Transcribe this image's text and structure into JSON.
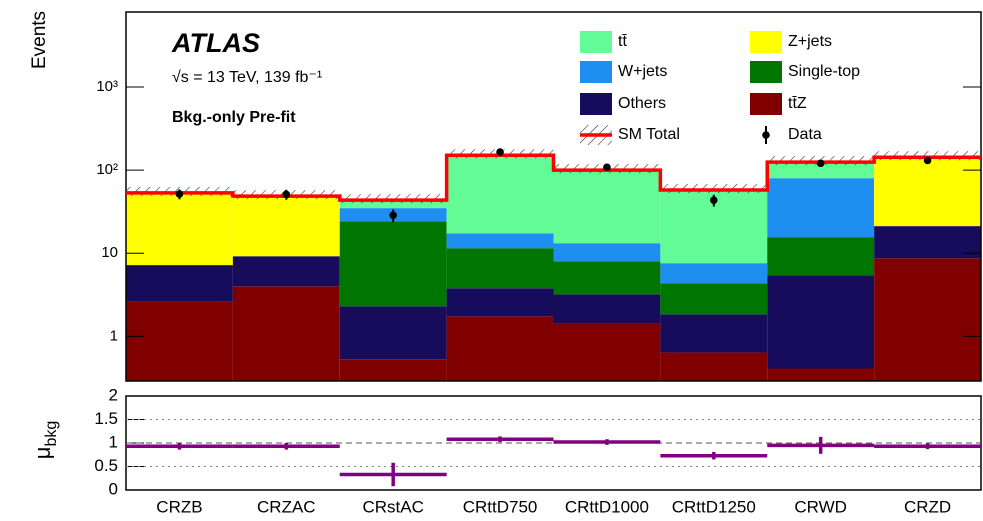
{
  "chart_data": [
    {
      "type": "stacked-bar",
      "title": "ATLAS",
      "subtitle": "√s = 13 TeV, 139 fb⁻¹",
      "annotation": "Bkg.-only Pre-fit",
      "ylabel": "Events",
      "log_scale": true,
      "legend": "upper right",
      "total_label": "SM Total",
      "total_color": "#ff0000",
      "ylim": [
        0.29,
        8000
      ],
      "yticks": [
        1,
        10,
        {
          "value": 100,
          "label": "10²"
        },
        {
          "value": 1000,
          "label": "10³"
        }
      ],
      "series": [
        {
          "name": "tt̄Z",
          "color": "#800000",
          "values": [
            2.6,
            4.0,
            0.53,
            1.74,
            1.43,
            0.64,
            0.41,
            8.7
          ]
        },
        {
          "name": "Others",
          "color": "#170b5c",
          "values": [
            4.6,
            5.2,
            1.77,
            2.05,
            1.77,
            1.2,
            5.0,
            12.5
          ]
        },
        {
          "name": "Single-top",
          "color": "#007500",
          "values": [
            0,
            0,
            21.9,
            7.7,
            4.8,
            2.5,
            10.2,
            0
          ]
        },
        {
          "name": "W+jets",
          "color": "#1e8ff0",
          "values": [
            0,
            0,
            10.7,
            5.9,
            5.2,
            3.25,
            64.4,
            0
          ]
        },
        {
          "name": "Z+jets",
          "color": "#ffff00",
          "values": [
            46,
            39.4,
            0,
            0,
            0,
            0,
            0,
            121.8
          ]
        },
        {
          "name": "tt̄",
          "color": "#62fb96",
          "values": [
            0,
            0,
            8.6,
            133.6,
            86.8,
            50,
            45,
            0
          ]
        }
      ],
      "data": {
        "name": "Data",
        "color": "#000000",
        "values": [
          51.5,
          51,
          28.6,
          165,
          108,
          43.5,
          121,
          131
        ],
        "errors": [
          7,
          7,
          5,
          13,
          10,
          7,
          11,
          11
        ]
      }
    },
    {
      "type": "errorbar",
      "ylabel": {
        "symbol": "μ",
        "subscript": "bkg"
      },
      "color": "#800080",
      "grid": true,
      "categories": [
        "CRZB",
        "CRZAC",
        "CRstAC",
        "CRttD750",
        "CRttD1000",
        "CRttD1250",
        "CRWD",
        "CRZD"
      ],
      "values": [
        0.93,
        0.93,
        0.33,
        1.08,
        1.02,
        0.73,
        0.95,
        0.93
      ],
      "errors": [
        0.07,
        0.07,
        0.25,
        0.06,
        0.06,
        0.08,
        0.18,
        0.06
      ],
      "ylim": [
        0,
        2
      ],
      "yticks": [
        0,
        0.5,
        1,
        1.5,
        2
      ]
    }
  ]
}
